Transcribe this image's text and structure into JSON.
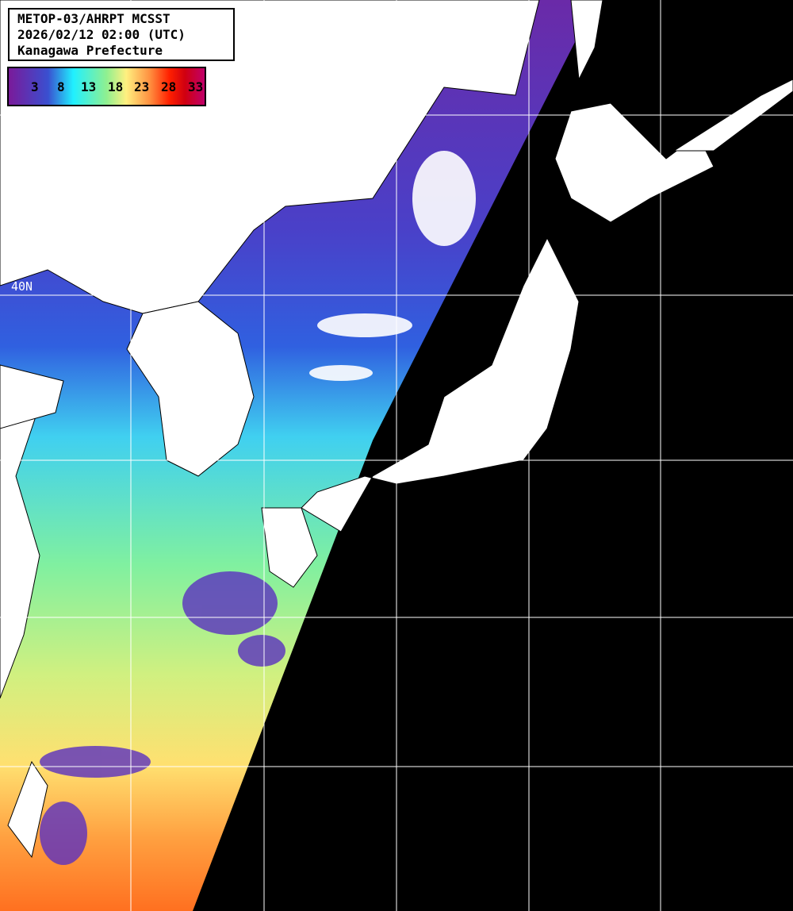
{
  "title": {
    "line1": "METOP-03/AHRPT MCSST",
    "line2": "2026/02/12 02:00 (UTC)",
    "line3": "Kanagawa Prefecture"
  },
  "color_scale": {
    "unit_ticks": [
      "3",
      "8",
      "13",
      "18",
      "23",
      "28",
      "33"
    ],
    "colors": [
      "#7a1a9a",
      "#3a4fd0",
      "#20f0ff",
      "#90f090",
      "#fff080",
      "#ff9040",
      "#ff2000",
      "#c0006a"
    ]
  },
  "grid": {
    "lat_label": "40N"
  },
  "colors": {
    "land": "#ffffff",
    "no_data": "#000000",
    "grid": "#ffffff"
  }
}
